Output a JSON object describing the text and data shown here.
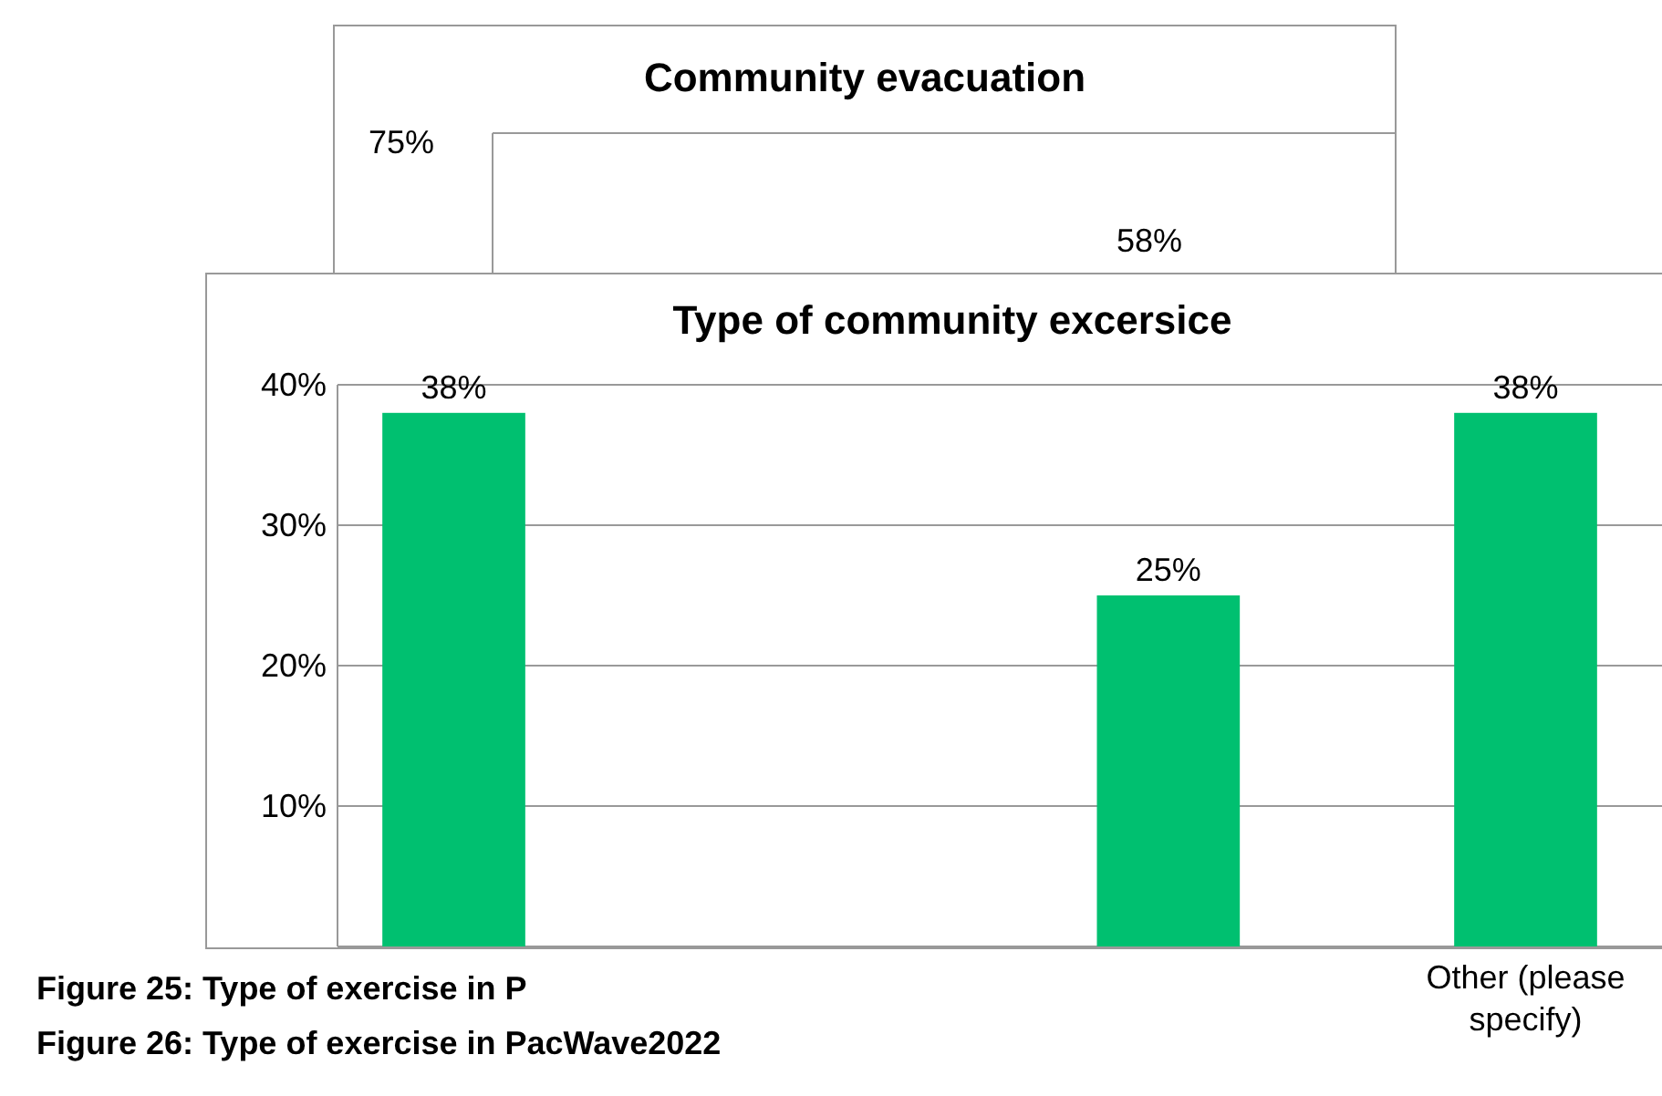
{
  "chart_data": [
    {
      "type": "other",
      "title": "Community evacuation",
      "annotations": [
        "75%",
        "58%"
      ]
    },
    {
      "type": "bar",
      "title": "Type of community excersice",
      "categories": [
        null,
        null,
        null,
        "Other (please specify)"
      ],
      "values": [
        38,
        null,
        25,
        38
      ],
      "color": "#00c070",
      "value_labels": [
        "38%",
        null,
        "25%",
        "38%"
      ],
      "ylim": [
        0,
        40
      ],
      "yticks": [
        {
          "value": 10,
          "label": "10%"
        },
        {
          "value": 20,
          "label": "20%"
        },
        {
          "value": 30,
          "label": "30%"
        },
        {
          "value": 40,
          "label": "40%"
        }
      ],
      "grid": "y",
      "annotations": [
        "Figure 25: Type of exercise in P",
        "Figure 26: Type of exercise in PacWave2022"
      ]
    }
  ]
}
